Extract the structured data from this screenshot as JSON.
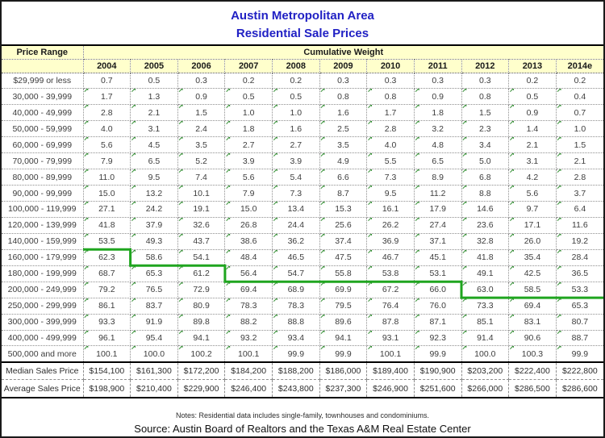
{
  "title": {
    "line1": "Austin Metropolitan Area",
    "line2": "Residential Sale Prices"
  },
  "table": {
    "corner_header": "Price Range",
    "group_header": "Cumulative Weight",
    "years": [
      "2004",
      "2005",
      "2006",
      "2007",
      "2008",
      "2009",
      "2010",
      "2011",
      "2012",
      "2013",
      "2014e"
    ],
    "rows": [
      {
        "label": "$29,999 or less",
        "values": [
          "0.7",
          "0.5",
          "0.3",
          "0.2",
          "0.2",
          "0.3",
          "0.3",
          "0.3",
          "0.3",
          "0.2",
          "0.2"
        ]
      },
      {
        "label": "30,000 - 39,999",
        "values": [
          "1.7",
          "1.3",
          "0.9",
          "0.5",
          "0.5",
          "0.8",
          "0.8",
          "0.9",
          "0.8",
          "0.5",
          "0.4"
        ]
      },
      {
        "label": "40,000 - 49,999",
        "values": [
          "2.8",
          "2.1",
          "1.5",
          "1.0",
          "1.0",
          "1.6",
          "1.7",
          "1.8",
          "1.5",
          "0.9",
          "0.7"
        ]
      },
      {
        "label": "50,000 - 59,999",
        "values": [
          "4.0",
          "3.1",
          "2.4",
          "1.8",
          "1.6",
          "2.5",
          "2.8",
          "3.2",
          "2.3",
          "1.4",
          "1.0"
        ]
      },
      {
        "label": "60,000 - 69,999",
        "values": [
          "5.6",
          "4.5",
          "3.5",
          "2.7",
          "2.7",
          "3.5",
          "4.0",
          "4.8",
          "3.4",
          "2.1",
          "1.5"
        ]
      },
      {
        "label": "70,000 - 79,999",
        "values": [
          "7.9",
          "6.5",
          "5.2",
          "3.9",
          "3.9",
          "4.9",
          "5.5",
          "6.5",
          "5.0",
          "3.1",
          "2.1"
        ]
      },
      {
        "label": "80,000 - 89,999",
        "values": [
          "11.0",
          "9.5",
          "7.4",
          "5.6",
          "5.4",
          "6.6",
          "7.3",
          "8.9",
          "6.8",
          "4.2",
          "2.8"
        ]
      },
      {
        "label": "90,000 - 99,999",
        "values": [
          "15.0",
          "13.2",
          "10.1",
          "7.9",
          "7.3",
          "8.7",
          "9.5",
          "11.2",
          "8.8",
          "5.6",
          "3.7"
        ]
      },
      {
        "label": "100,000 - 119,999",
        "values": [
          "27.1",
          "24.2",
          "19.1",
          "15.0",
          "13.4",
          "15.3",
          "16.1",
          "17.9",
          "14.6",
          "9.7",
          "6.4"
        ]
      },
      {
        "label": "120,000 - 139,999",
        "values": [
          "41.8",
          "37.9",
          "32.6",
          "26.8",
          "24.4",
          "25.6",
          "26.2",
          "27.4",
          "23.6",
          "17.1",
          "11.6"
        ]
      },
      {
        "label": "140,000 - 159,999",
        "values": [
          "53.5",
          "49.3",
          "43.7",
          "38.6",
          "36.2",
          "37.4",
          "36.9",
          "37.1",
          "32.8",
          "26.0",
          "19.2"
        ]
      },
      {
        "label": "160,000 - 179,999",
        "values": [
          "62.3",
          "58.6",
          "54.1",
          "48.4",
          "46.5",
          "47.5",
          "46.7",
          "45.1",
          "41.8",
          "35.4",
          "28.4"
        ]
      },
      {
        "label": "180,000 - 199,999",
        "values": [
          "68.7",
          "65.3",
          "61.2",
          "56.4",
          "54.7",
          "55.8",
          "53.8",
          "53.1",
          "49.1",
          "42.5",
          "36.5"
        ]
      },
      {
        "label": "200,000 - 249,999",
        "values": [
          "79.2",
          "76.5",
          "72.9",
          "69.4",
          "68.9",
          "69.9",
          "67.2",
          "66.0",
          "63.0",
          "58.5",
          "53.3"
        ]
      },
      {
        "label": "250,000 - 299,999",
        "values": [
          "86.1",
          "83.7",
          "80.9",
          "78.3",
          "78.3",
          "79.5",
          "76.4",
          "76.0",
          "73.3",
          "69.4",
          "65.3"
        ]
      },
      {
        "label": "300,000 - 399,999",
        "values": [
          "93.3",
          "91.9",
          "89.8",
          "88.2",
          "88.8",
          "89.6",
          "87.8",
          "87.1",
          "85.1",
          "83.1",
          "80.7"
        ]
      },
      {
        "label": "400,000 - 499,999",
        "values": [
          "96.1",
          "95.4",
          "94.1",
          "93.2",
          "93.4",
          "94.1",
          "93.1",
          "92.3",
          "91.4",
          "90.6",
          "88.7"
        ]
      },
      {
        "label": "500,000 and more",
        "values": [
          "100.1",
          "100.0",
          "100.2",
          "100.1",
          "99.9",
          "99.9",
          "100.1",
          "99.9",
          "100.0",
          "100.3",
          "99.9"
        ]
      }
    ],
    "summary_rows": [
      {
        "label": "Median Sales Price",
        "values": [
          "$154,100",
          "$161,300",
          "$172,200",
          "$184,200",
          "$188,200",
          "$186,000",
          "$189,400",
          "$190,900",
          "$203,200",
          "$222,400",
          "$222,800"
        ]
      },
      {
        "label": "Average Sales Price",
        "values": [
          "$198,900",
          "$210,400",
          "$229,900",
          "$246,400",
          "$243,800",
          "$237,300",
          "$246,900",
          "$251,600",
          "$266,000",
          "$286,500",
          "$286,600"
        ]
      }
    ]
  },
  "median_step_line": {
    "description": "Green step line marking the price range containing the median sales price for each year",
    "color": "#1fa51f",
    "path": [
      {
        "col": 0,
        "row": 10
      },
      {
        "col": 1,
        "row": 10
      },
      {
        "col": 1,
        "row": 11
      },
      {
        "col": 3,
        "row": 11
      },
      {
        "col": 3,
        "row": 12
      },
      {
        "col": 8,
        "row": 12
      },
      {
        "col": 8,
        "row": 13
      },
      {
        "col": 11,
        "row": 13
      }
    ]
  },
  "icons": {
    "cell_flag": "cell-flag-icon",
    "cell_flag_glyph": "↗",
    "cell_flag_color": "#2e8b2e"
  },
  "colors": {
    "title_blue": "#2121c4",
    "header_background": "#ffffcc",
    "step_line_green": "#1fa51f"
  },
  "footer": {
    "notes": "Notes: Residential data includes single-family, townhouses and condominiums.",
    "source": "Source: Austin Board of Realtors and the Texas A&M Real Estate Center"
  }
}
